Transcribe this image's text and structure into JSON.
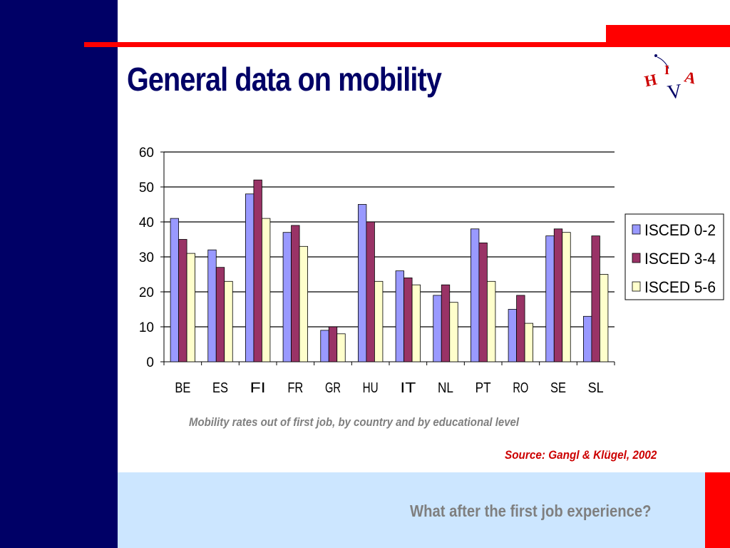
{
  "slide": {
    "title": "General data on mobility",
    "caption": "Mobility rates out of first job, by country and by educational level",
    "source": "Source:  Gangl & Klügel,  2002",
    "footer": "What after the first job experience?",
    "logo_text": "HIVA",
    "colors": {
      "navy": "#000066",
      "red": "#ff0000",
      "light_blue": "#cce6ff",
      "caption_gray": "#7f7f7f",
      "source_red": "#cc0000"
    }
  },
  "chart_data": {
    "type": "bar",
    "categories": [
      "BE",
      "ES",
      "FI",
      "FR",
      "GR",
      "HU",
      "IT",
      "NL",
      "PT",
      "RO",
      "SE",
      "SL"
    ],
    "series": [
      {
        "name": "ISCED 0-2",
        "color": "#9999ff",
        "values": [
          41,
          32,
          48,
          37,
          9,
          45,
          26,
          19,
          38,
          15,
          36,
          13
        ]
      },
      {
        "name": "ISCED 3-4",
        "color": "#993366",
        "values": [
          35,
          27,
          52,
          39,
          10,
          40,
          24,
          22,
          34,
          19,
          38,
          36
        ]
      },
      {
        "name": "ISCED 5-6",
        "color": "#ffffcc",
        "values": [
          31,
          23,
          41,
          33,
          8,
          23,
          22,
          17,
          23,
          11,
          37,
          25
        ]
      }
    ],
    "ylim": [
      0,
      60
    ],
    "yticks": [
      0,
      10,
      20,
      30,
      40,
      50,
      60
    ],
    "grid": true,
    "legend_position": "right"
  }
}
